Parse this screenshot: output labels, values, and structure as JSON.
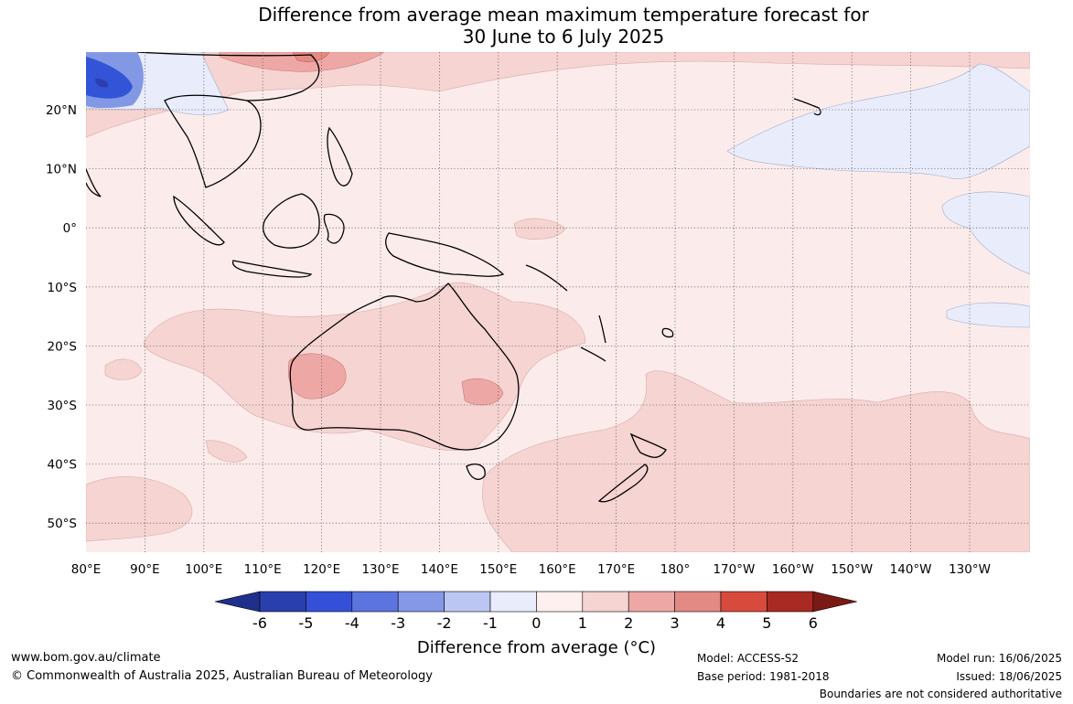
{
  "title": {
    "line1": "Difference from average mean maximum temperature forecast for",
    "line2": "30 June to 6 July 2025"
  },
  "map": {
    "lon_labels": [
      "80°E",
      "90°E",
      "100°E",
      "110°E",
      "120°E",
      "130°E",
      "140°E",
      "150°E",
      "160°E",
      "170°E",
      "180°",
      "170°W",
      "160°W",
      "150°W",
      "140°W",
      "130°W"
    ],
    "lat_labels": [
      "20°N",
      "10°N",
      "0°",
      "10°S",
      "20°S",
      "30°S",
      "40°S",
      "50°S"
    ],
    "colors": {
      "ocean_base": "#fbeceb",
      "anomaly_1_2": "#f5d4d2",
      "anomaly_2_3": "#eda8a6",
      "anomaly_3_4": "#e38a84",
      "anomaly_neg_0_1": "#e8ecfb",
      "anomaly_neg_2_3": "#8298e4",
      "anomaly_neg_4_5": "#3454d8",
      "land_outline": "#000000",
      "grid": "#555555"
    }
  },
  "colorbar": {
    "labels": [
      "-6",
      "-5",
      "-4",
      "-3",
      "-2",
      "-1",
      "0",
      "1",
      "2",
      "3",
      "4",
      "5",
      "6"
    ],
    "colors": [
      "#1f2f8c",
      "#2a3fae",
      "#3450d8",
      "#5c74e0",
      "#8598e8",
      "#bcc6f2",
      "#e8ecfb",
      "#fdf0ee",
      "#f5d4d2",
      "#eda8a6",
      "#e38a84",
      "#d84a3c",
      "#a82a22",
      "#7a1a14"
    ],
    "title": "Difference from average (°C)"
  },
  "footer": {
    "url": "www.bom.gov.au/climate",
    "copyright": "© Commonwealth of Australia 2025, Australian Bureau of Meteorology",
    "model": "Model: ACCESS-S2",
    "base_period": "Base period: 1981-2018",
    "model_run": "Model run: 16/06/2025",
    "issued": "Issued: 18/06/2025",
    "boundaries": "Boundaries are not considered authoritative"
  }
}
